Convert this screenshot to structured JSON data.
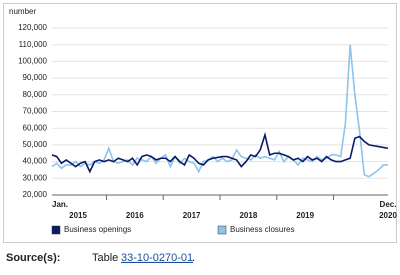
{
  "chart_data": {
    "type": "line",
    "y_axis_label": "number",
    "categories": [
      "Jan.",
      null,
      null,
      null,
      null,
      null,
      null,
      null,
      null,
      null,
      null,
      null,
      null,
      null,
      null,
      null,
      null,
      null,
      null,
      null,
      null,
      null,
      null,
      null,
      null,
      null,
      null,
      null,
      null,
      null,
      null,
      null,
      null,
      null,
      null,
      null,
      null,
      null,
      null,
      null,
      null,
      null,
      null,
      null,
      null,
      null,
      null,
      null,
      null,
      null,
      null,
      null,
      null,
      null,
      null,
      null,
      null,
      null,
      null,
      null,
      null,
      null,
      null,
      null,
      null,
      null,
      null,
      null,
      null,
      null,
      null,
      "Dec."
    ],
    "years": [
      "2015",
      "2016",
      "2017",
      "2018",
      "2019",
      "2020"
    ],
    "series": [
      {
        "name": "Business openings",
        "color": "#0b1a66",
        "values": [
          44000,
          43000,
          39000,
          41000,
          39000,
          37000,
          39000,
          40000,
          34000,
          40000,
          41000,
          40000,
          41000,
          40000,
          42000,
          41000,
          40000,
          42000,
          38000,
          43000,
          44000,
          43000,
          41000,
          42000,
          42000,
          40000,
          43000,
          40000,
          38000,
          44000,
          42000,
          39000,
          38000,
          41000,
          42000,
          42500,
          43000,
          43000,
          42000,
          41000,
          37000,
          40000,
          44000,
          43000,
          47000,
          56000,
          44000,
          45000,
          45000,
          44000,
          43000,
          41000,
          42000,
          40000,
          43000,
          41000,
          42000,
          40000,
          43000,
          41000,
          40000,
          40000,
          41000,
          42000,
          54000,
          55000,
          52000,
          50000,
          49500,
          49000,
          48500,
          48000
        ]
      },
      {
        "name": "Business closures",
        "color": "#8cc4ec",
        "values": [
          37000,
          39000,
          36000,
          38000,
          38000,
          40000,
          37000,
          39000,
          38000,
          40000,
          39000,
          41000,
          48000,
          40000,
          39000,
          40000,
          41000,
          38000,
          42000,
          41000,
          40000,
          43000,
          39000,
          42000,
          44000,
          37000,
          43000,
          39000,
          42000,
          40000,
          39000,
          34000,
          40000,
          41000,
          43000,
          40000,
          42000,
          40000,
          41000,
          47000,
          43000,
          42000,
          41000,
          44000,
          42000,
          43000,
          42000,
          41000,
          46000,
          40000,
          43000,
          41000,
          38000,
          42000,
          41000,
          40000,
          43000,
          41000,
          42000,
          44000,
          44000,
          43000,
          63000,
          110000,
          80000,
          58000,
          32000,
          31000,
          33000,
          35000,
          38000,
          38000
        ]
      }
    ],
    "ylim": [
      20000,
      120000
    ],
    "yticks": [
      {
        "value": 20000,
        "label": "20,000"
      },
      {
        "value": 30000,
        "label": "30,000"
      },
      {
        "value": 40000,
        "label": "40,000"
      },
      {
        "value": 50000,
        "label": "50,000"
      },
      {
        "value": 60000,
        "label": "60,000"
      },
      {
        "value": 70000,
        "label": "70,000"
      },
      {
        "value": 80000,
        "label": "80,000"
      },
      {
        "value": 90000,
        "label": "90,000"
      },
      {
        "value": 100000,
        "label": "100,000"
      },
      {
        "value": 110000,
        "label": "110,000"
      },
      {
        "value": 120000,
        "label": "120,000"
      }
    ],
    "grid": true
  },
  "source": {
    "label": "Source(s):",
    "text": "Table",
    "link": "33-10-0270-01",
    "end": "."
  }
}
